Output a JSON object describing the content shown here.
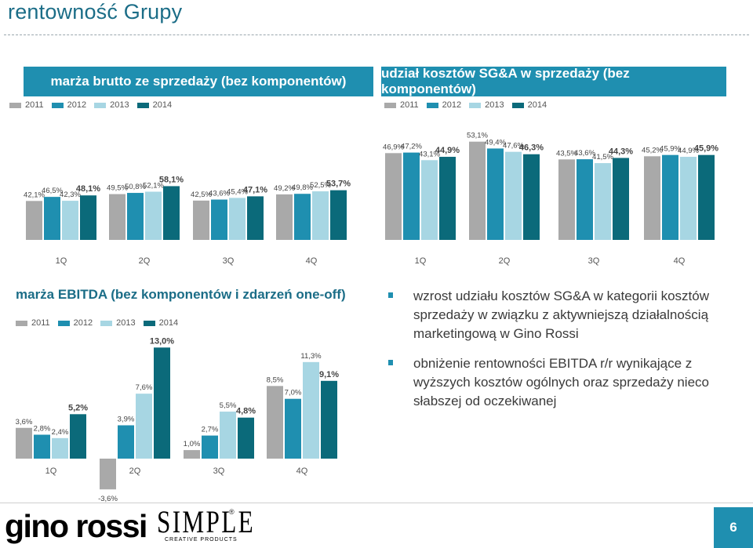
{
  "page": {
    "title": "rentowność Grupy",
    "page_number": "6"
  },
  "colors": {
    "c2011": "#a9a9a9",
    "c2012": "#1f8fb0",
    "c2013": "#a7d6e3",
    "c2014": "#0b6a7a",
    "header_bg": "#1f8fb0"
  },
  "legend": [
    "2011",
    "2012",
    "2013",
    "2014"
  ],
  "charts": {
    "gross": {
      "title": "marża brutto ze sprzedaży (bez komponentów)"
    },
    "sga": {
      "title": "udział kosztów SG&A w sprzedaży (bez komponentów)"
    },
    "ebitda": {
      "title": "marża EBITDA (bez komponentów i zdarzeń one-off)"
    }
  },
  "chart_data": [
    {
      "type": "bar",
      "title": "marża brutto ze sprzedaży (bez komponentów)",
      "categories": [
        "1Q",
        "2Q",
        "3Q",
        "4Q"
      ],
      "series": [
        {
          "name": "2011",
          "values": [
            42.1,
            49.5,
            42.5,
            49.2
          ],
          "labels": [
            "42,1%",
            "49,5%",
            "42,5%",
            "49,2%"
          ]
        },
        {
          "name": "2012",
          "values": [
            46.5,
            50.8,
            43.6,
            49.8
          ],
          "labels": [
            "46,5%",
            "50,8%",
            "43,6%",
            "49,8%"
          ]
        },
        {
          "name": "2013",
          "values": [
            42.3,
            52.1,
            45.4,
            52.5
          ],
          "labels": [
            "42,3%",
            "52,1%",
            "45,4%",
            "52,5%"
          ]
        },
        {
          "name": "2014",
          "values": [
            48.1,
            58.1,
            47.1,
            53.7
          ],
          "labels": [
            "48,1%",
            "58,1%",
            "47,1%",
            "53,7%"
          ]
        }
      ],
      "ylim": [
        0,
        80
      ]
    },
    {
      "type": "bar",
      "title": "udział kosztów SG&A w sprzedaży (bez komponentów)",
      "categories": [
        "1Q",
        "2Q",
        "3Q",
        "4Q"
      ],
      "series": [
        {
          "name": "2011",
          "values": [
            46.9,
            53.1,
            43.5,
            45.2
          ],
          "labels": [
            "46,9%",
            "53,1%",
            "43,5%",
            "45,2%"
          ]
        },
        {
          "name": "2012",
          "values": [
            47.2,
            49.4,
            43.6,
            45.9
          ],
          "labels": [
            "47,2%",
            "49,4%",
            "43,6%",
            "45,9%"
          ]
        },
        {
          "name": "2013",
          "values": [
            43.1,
            47.6,
            41.5,
            44.9
          ],
          "labels": [
            "43,1%",
            "47,6%",
            "41,5%",
            "44,9%"
          ]
        },
        {
          "name": "2014",
          "values": [
            44.9,
            46.3,
            44.3,
            45.9
          ],
          "labels": [
            "44,9%",
            "46,3%",
            "44,3%",
            "45,9%"
          ]
        }
      ],
      "ylim": [
        0,
        60
      ]
    },
    {
      "type": "bar",
      "title": "marża EBITDA (bez komponentów i zdarzeń one-off)",
      "categories": [
        "1Q",
        "2Q",
        "3Q",
        "4Q"
      ],
      "series": [
        {
          "name": "2011",
          "values": [
            3.6,
            -3.6,
            1.0,
            8.5
          ],
          "labels": [
            "3,6%",
            "-3,6%",
            "1,0%",
            "8,5%"
          ]
        },
        {
          "name": "2012",
          "values": [
            2.8,
            3.9,
            2.7,
            7.0
          ],
          "labels": [
            "2,8%",
            "3,9%",
            "2,7%",
            "7,0%"
          ]
        },
        {
          "name": "2013",
          "values": [
            2.4,
            7.6,
            5.5,
            11.3
          ],
          "labels": [
            "2,4%",
            "7,6%",
            "5,5%",
            "11,3%"
          ]
        },
        {
          "name": "2014",
          "values": [
            5.2,
            13.0,
            4.8,
            9.1
          ],
          "labels": [
            "5,2%",
            "13,0%",
            "4,8%",
            "9,1%"
          ]
        }
      ],
      "ylim": [
        -4,
        14
      ]
    }
  ],
  "bullets": [
    "wzrost udziału kosztów SG&A w kategorii kosztów sprzedaży w związku z aktywniejszą działalnością marketingową w Gino Rossi",
    "obniżenie rentowności EBITDA r/r wynikające z wyższych kosztów ogólnych oraz sprzedaży nieco słabszej od oczekiwanej"
  ],
  "footer": {
    "logo_gino": "gino rossi",
    "logo_simple": "SIMPLE",
    "logo_simple_sub": "CREATIVE PRODUCTS",
    "registered_mark": "®"
  }
}
